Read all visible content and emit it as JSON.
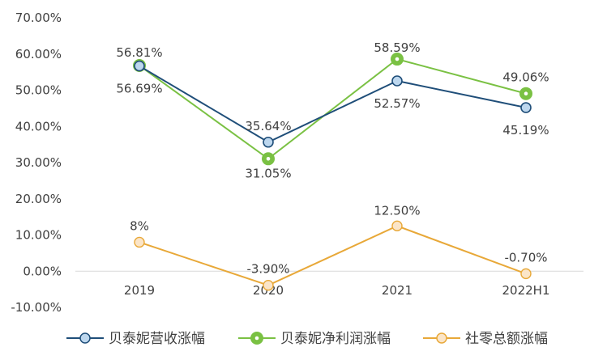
{
  "chart_data": {
    "type": "line",
    "categories": [
      "2019",
      "2020",
      "2021",
      "2022H1"
    ],
    "ylim": [
      -10,
      70
    ],
    "yticks": [
      -10,
      0,
      10,
      20,
      30,
      40,
      50,
      60,
      70
    ],
    "ytick_labels": [
      "-10.00%",
      "0.00%",
      "10.00%",
      "20.00%",
      "30.00%",
      "40.00%",
      "50.00%",
      "60.00%",
      "70.00%"
    ],
    "grid": false,
    "legend_position": "bottom",
    "series": [
      {
        "name": "贝泰妮营收涨幅",
        "values": [
          56.69,
          35.64,
          52.57,
          45.19
        ],
        "labels": [
          "56.69%",
          "35.64%",
          "52.57%",
          "45.19%"
        ],
        "color": "#1F4E79",
        "marker_fill": "#BDD7EE"
      },
      {
        "name": "贝泰妮净利润涨幅",
        "values": [
          56.81,
          31.05,
          58.59,
          49.06
        ],
        "labels": [
          "56.81%",
          "31.05%",
          "58.59%",
          "49.06%"
        ],
        "color": "#7AC143",
        "marker_fill": "#7AC143"
      },
      {
        "name": "社零总额涨幅",
        "values": [
          8,
          -3.9,
          12.5,
          -0.7
        ],
        "labels": [
          "8%",
          "-3.90%",
          "12.50%",
          "-0.70%"
        ],
        "color": "#E8A838",
        "marker_fill": "#FBE5C8"
      }
    ]
  }
}
